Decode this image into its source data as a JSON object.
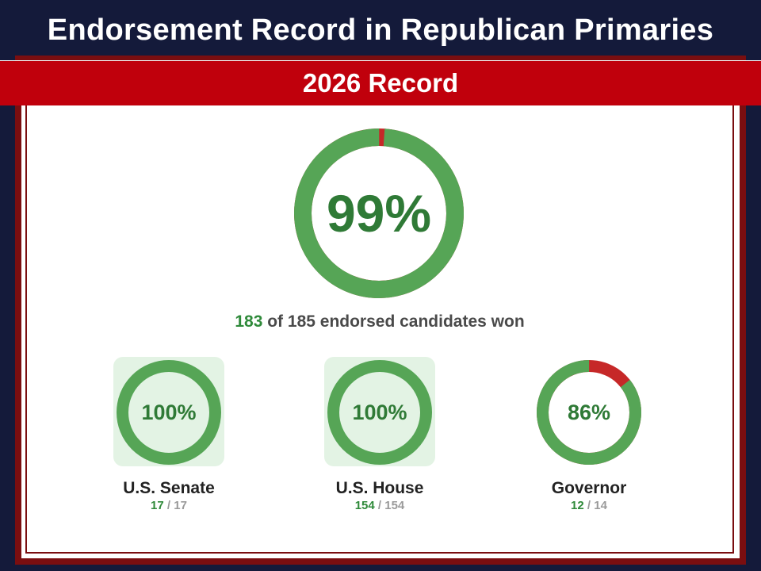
{
  "title": "Endorsement Record in Republican Primaries",
  "subtitle": "2026 Record",
  "colors": {
    "won": "#56a556",
    "lost": "#c62828",
    "navy": "#141a3a",
    "red": "#c0000c"
  },
  "chart_data": [
    {
      "type": "pie",
      "label": "99%",
      "won": 183,
      "total": 185,
      "summary": {
        "won": "183",
        "rest": "of 185 endorsed candidates won"
      }
    },
    {
      "type": "pie",
      "category": "U.S. Senate",
      "label": "100%",
      "won": 17,
      "total": 17,
      "won_text": "17",
      "total_text": "/ 17",
      "highlighted": true
    },
    {
      "type": "pie",
      "category": "U.S. House",
      "label": "100%",
      "won": 154,
      "total": 154,
      "won_text": "154",
      "total_text": "/ 154",
      "highlighted": true
    },
    {
      "type": "pie",
      "category": "Governor",
      "label": "86%",
      "won": 12,
      "total": 14,
      "won_text": "12",
      "total_text": "/ 14",
      "highlighted": false
    }
  ]
}
